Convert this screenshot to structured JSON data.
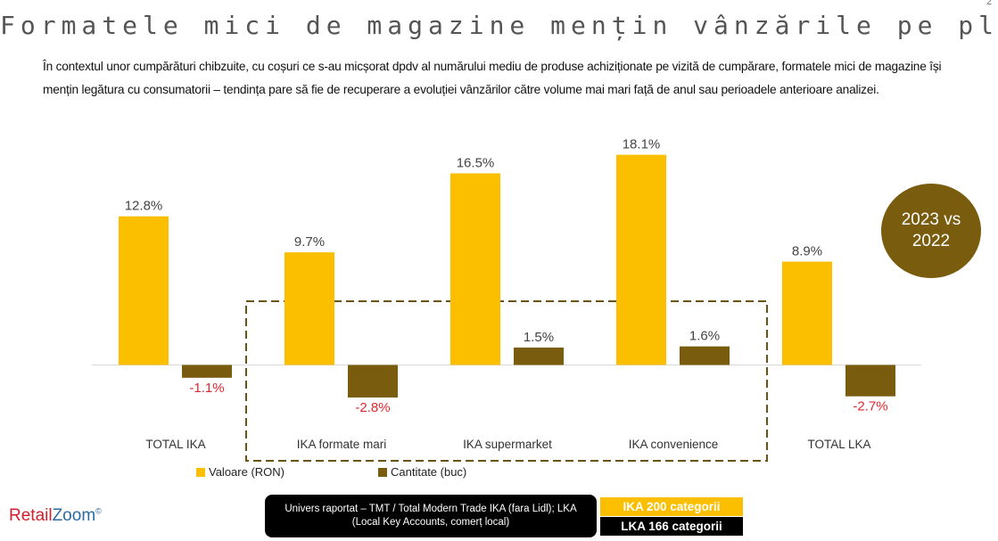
{
  "title": "Formatele mici de magazine mențin vânzările pe plus",
  "subtitle": "În contextul unor cumpărături chibzuite, cu coșuri ce s-au micșorat dpdv al numărului mediu de produse achiziționate pe vizită de cumpărare, formatele mici de magazine își mențin legătura cu consumatorii – tendința pare să fie de recuperare a evoluției vânzărilor către volume mai mari față de anul sau perioadele anterioare analizei.",
  "corner_mark": "2",
  "year_badge": {
    "line1": "2023 vs",
    "line2": "2022"
  },
  "colors": {
    "value": "#fcbf00",
    "quantity": "#7a5c0f",
    "negative_label": "#e3262d",
    "positive_label": "#444444",
    "box_border": "#6b5313"
  },
  "chart_data": {
    "type": "bar",
    "categories": [
      "TOTAL IKA",
      "IKA formate mari",
      "IKA supermarket",
      "IKA convenience",
      "TOTAL LKA"
    ],
    "series": [
      {
        "name": "Valoare (RON)",
        "values": [
          12.8,
          9.7,
          16.5,
          18.1,
          8.9
        ]
      },
      {
        "name": "Cantitate (buc)",
        "values": [
          -1.1,
          -2.8,
          1.5,
          1.6,
          -2.7
        ]
      }
    ],
    "data_labels": [
      [
        "12.8%",
        "9.7%",
        "16.5%",
        "18.1%",
        "8.9%"
      ],
      [
        "-1.1%",
        "-2.8%",
        "1.5%",
        "1.6%",
        "-2.7%"
      ]
    ],
    "unit": "%",
    "ylim": [
      -4,
      19
    ],
    "grid": false,
    "legend_position": "bottom-left",
    "highlight_box": "IKA formate mari – IKA convenience"
  },
  "note": "Univers raportat – TMT / Total Modern Trade IKA (fara Lidl); LKA (Local Key Accounts, comerț local)",
  "tags": {
    "ika": "IKA 200 categorii",
    "lka": "LKA 166 categorii"
  },
  "logo": {
    "part1": "Retail",
    "part2": "Zoom",
    "mark": "©"
  }
}
